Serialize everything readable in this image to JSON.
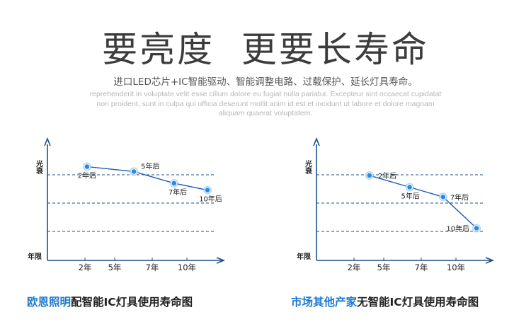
{
  "header": {
    "title": "要亮度  更要长寿命",
    "subtitle": "进口LED芯片+IC智能驱动、智能调整电路、过载保护、延长灯具寿命。",
    "placeholder_text": "reprehenderit in voluptate velit esse cillum dolore eu fugiat nulla pariatur. Excepteur sint occaecat cupidatat non proident, sunt in culpa qui officia deserunt mollit anim id est et incidunt ut labore et dolore magnam aliquam quaerat voluptatem."
  },
  "colors": {
    "axis": "#1f4f86",
    "line": "#1c5bb8",
    "point_fill": "#2a8ae0",
    "point_ring": "#9fcaf0",
    "gridline": "#1f4f86",
    "brand": "#1c78d4"
  },
  "captions": {
    "left_brand": "欧恩照明",
    "left_rest": "配智能IC灯具使用寿命图",
    "right_brand": "市场其他产家",
    "right_rest": "无智能IC灯具使用寿命图"
  },
  "chart_data": [
    {
      "type": "line",
      "xlabel": "年限",
      "ylabel": "光衰",
      "x_ticks": [
        "2年",
        "5年",
        "7年",
        "10年"
      ],
      "grid": "dashed horizontal",
      "series": [
        {
          "points": [
            {
              "x": 1,
              "y": 96,
              "label": "2年后"
            },
            {
              "x": 4.5,
              "y": 91,
              "label": "5年后"
            },
            {
              "x": 7.5,
              "y": 79,
              "label": "7年后"
            },
            {
              "x": 10,
              "y": 72,
              "label": "10年后"
            }
          ]
        }
      ],
      "ylim": [
        0,
        100
      ]
    },
    {
      "type": "line",
      "xlabel": "年限",
      "ylabel": "光衰",
      "x_ticks": [
        "2年",
        "5年",
        "7年",
        "10年"
      ],
      "grid": "dashed horizontal",
      "series": [
        {
          "points": [
            {
              "x": 2,
              "y": 87,
              "label": "2年后"
            },
            {
              "x": 5,
              "y": 75,
              "label": "5年后"
            },
            {
              "x": 7.5,
              "y": 65,
              "label": "7年后"
            },
            {
              "x": 10,
              "y": 33,
              "label": "10年后"
            }
          ]
        }
      ],
      "ylim": [
        0,
        100
      ]
    }
  ]
}
